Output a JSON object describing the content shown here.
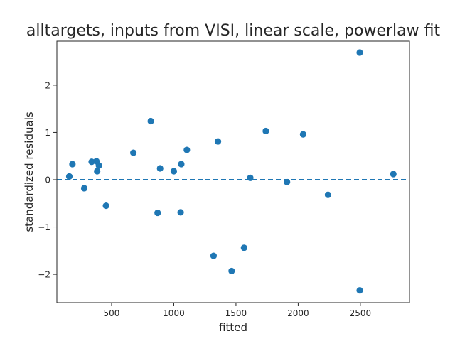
{
  "chart_data": {
    "type": "scatter",
    "title": "alltargets, inputs from VISI, linear scale, powerlaw fit",
    "xlabel": "fitted",
    "ylabel": "standardized residuals",
    "xlim": [
      60,
      2895
    ],
    "ylim": [
      -2.6,
      2.93
    ],
    "xticks": [
      500,
      1000,
      1500,
      2000,
      2500
    ],
    "yticks": [
      -2,
      -1,
      0,
      1,
      2
    ],
    "xtick_labels": [
      "500",
      "1000",
      "1500",
      "2000",
      "2500"
    ],
    "ytick_labels": [
      "−2",
      "−1",
      "0",
      "1",
      "2"
    ],
    "reference_line": {
      "y": 0,
      "style": "dashed",
      "color": "#1f77b4"
    },
    "grid": false,
    "marker_color": "#1f77b4",
    "series": [
      {
        "x": [
          160,
          185,
          280,
          340,
          378,
          384,
          398,
          455,
          675,
          815,
          870,
          890,
          1000,
          1055,
          1060,
          1105,
          1320,
          1355,
          1465,
          1565,
          1615,
          1740,
          1910,
          2040,
          2240,
          2495,
          2495,
          2765
        ],
        "y": [
          0.07,
          0.33,
          -0.18,
          0.38,
          0.39,
          0.18,
          0.3,
          -0.55,
          0.57,
          1.24,
          -0.7,
          0.24,
          0.18,
          -0.69,
          0.33,
          0.63,
          -1.61,
          0.81,
          -1.93,
          -1.44,
          0.04,
          1.03,
          -0.05,
          0.96,
          -0.32,
          2.69,
          -2.34,
          0.12
        ]
      }
    ]
  }
}
